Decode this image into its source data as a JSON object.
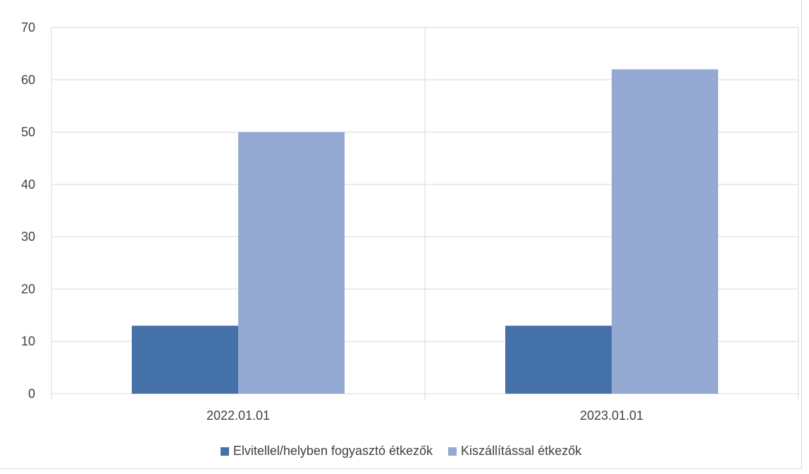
{
  "chart_data": {
    "type": "bar",
    "categories": [
      "2022.01.01",
      "2023.01.01"
    ],
    "series": [
      {
        "name": "Elvitellel/helyben fogyasztó étkezők",
        "values": [
          13,
          13
        ],
        "color": "#4472a8"
      },
      {
        "name": "Kiszállítással étkezők",
        "values": [
          50,
          62
        ],
        "color": "#95aad2"
      }
    ],
    "ylim": [
      0,
      70
    ],
    "yticks": [
      0,
      10,
      20,
      30,
      40,
      50,
      60,
      70
    ],
    "grid": true,
    "legend_position": "bottom",
    "title": "",
    "xlabel": "",
    "ylabel": ""
  }
}
